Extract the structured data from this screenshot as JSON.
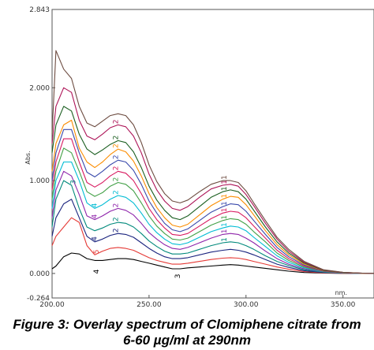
{
  "figure": {
    "caption_line1": "Figure 3: Overlay spectrum of Clomiphene citrate from",
    "caption_line2": "6-60 µg/ml at 290nm"
  },
  "chart_data": {
    "type": "line",
    "title": "",
    "xlabel": "nm.",
    "ylabel": "Abs.",
    "xlim": [
      200,
      366
    ],
    "ylim": [
      -0.264,
      2.843
    ],
    "x_ticks": [
      200,
      250,
      300,
      350
    ],
    "x_tick_labels": [
      "200.00",
      "250.00",
      "300.00",
      "350.00"
    ],
    "y_ticks": [
      -0.264,
      0.0,
      1.0,
      2.0,
      2.843
    ],
    "y_tick_labels": [
      "-0.264",
      "0.000",
      "1.000",
      "2.000",
      "2.843"
    ],
    "grid": false,
    "legend": "none",
    "peak_marker_labels": [
      "1",
      "2",
      "3",
      "4",
      "5"
    ],
    "series": [
      {
        "color": "#000000",
        "x": [
          200,
          202,
          206,
          210,
          214,
          218,
          222,
          226,
          230,
          234,
          238,
          242,
          246,
          250,
          254,
          258,
          262,
          266,
          270,
          276,
          282,
          288,
          292,
          296,
          300,
          304,
          310,
          316,
          322,
          330,
          340,
          350,
          360,
          366
        ],
        "values": [
          0.05,
          0.08,
          0.18,
          0.22,
          0.21,
          0.16,
          0.14,
          0.14,
          0.15,
          0.16,
          0.16,
          0.15,
          0.13,
          0.11,
          0.09,
          0.07,
          0.05,
          0.05,
          0.06,
          0.07,
          0.08,
          0.09,
          0.095,
          0.09,
          0.08,
          0.07,
          0.055,
          0.04,
          0.025,
          0.01,
          0.003,
          0.001,
          0.0,
          0.0
        ]
      },
      {
        "color": "#e53935",
        "x": [
          200,
          202,
          206,
          210,
          214,
          218,
          222,
          226,
          230,
          234,
          238,
          242,
          246,
          250,
          254,
          258,
          262,
          266,
          270,
          276,
          282,
          288,
          292,
          296,
          300,
          304,
          310,
          316,
          322,
          330,
          340,
          350,
          360,
          366
        ],
        "values": [
          0.3,
          0.4,
          0.5,
          0.6,
          0.55,
          0.3,
          0.2,
          0.24,
          0.27,
          0.28,
          0.27,
          0.25,
          0.21,
          0.17,
          0.14,
          0.12,
          0.1,
          0.1,
          0.11,
          0.13,
          0.15,
          0.165,
          0.17,
          0.165,
          0.15,
          0.13,
          0.1,
          0.07,
          0.045,
          0.02,
          0.006,
          0.002,
          0.0,
          0.0
        ]
      },
      {
        "color": "#1a237e",
        "x": [
          200,
          202,
          206,
          210,
          214,
          218,
          222,
          226,
          230,
          234,
          238,
          242,
          246,
          250,
          254,
          258,
          262,
          266,
          270,
          276,
          282,
          288,
          292,
          296,
          300,
          304,
          310,
          316,
          322,
          330,
          340,
          350,
          360,
          366
        ],
        "values": [
          0.4,
          0.6,
          0.75,
          0.8,
          0.6,
          0.4,
          0.34,
          0.37,
          0.41,
          0.43,
          0.42,
          0.39,
          0.33,
          0.27,
          0.22,
          0.18,
          0.16,
          0.16,
          0.17,
          0.2,
          0.23,
          0.25,
          0.26,
          0.25,
          0.23,
          0.2,
          0.15,
          0.1,
          0.065,
          0.03,
          0.01,
          0.003,
          0.0,
          0.0
        ]
      },
      {
        "color": "#00897b",
        "x": [
          200,
          202,
          206,
          210,
          214,
          218,
          222,
          226,
          230,
          234,
          238,
          242,
          246,
          250,
          254,
          258,
          262,
          266,
          270,
          276,
          282,
          288,
          292,
          296,
          300,
          304,
          310,
          316,
          322,
          330,
          340,
          350,
          360,
          366
        ],
        "values": [
          0.5,
          0.8,
          1.0,
          0.95,
          0.7,
          0.5,
          0.46,
          0.49,
          0.53,
          0.55,
          0.54,
          0.5,
          0.43,
          0.35,
          0.29,
          0.24,
          0.21,
          0.21,
          0.22,
          0.26,
          0.3,
          0.33,
          0.34,
          0.33,
          0.3,
          0.26,
          0.19,
          0.13,
          0.085,
          0.04,
          0.013,
          0.004,
          0.001,
          0.0
        ]
      },
      {
        "color": "#8e24aa",
        "x": [
          200,
          202,
          206,
          210,
          214,
          218,
          222,
          226,
          230,
          234,
          238,
          242,
          246,
          250,
          254,
          258,
          262,
          266,
          270,
          276,
          282,
          288,
          292,
          296,
          300,
          304,
          310,
          316,
          322,
          330,
          340,
          350,
          360,
          366
        ],
        "values": [
          0.6,
          0.9,
          1.1,
          1.05,
          0.85,
          0.62,
          0.58,
          0.62,
          0.67,
          0.7,
          0.68,
          0.63,
          0.54,
          0.44,
          0.37,
          0.31,
          0.27,
          0.26,
          0.28,
          0.33,
          0.38,
          0.42,
          0.43,
          0.42,
          0.38,
          0.33,
          0.24,
          0.16,
          0.1,
          0.05,
          0.016,
          0.005,
          0.001,
          0.0
        ]
      },
      {
        "color": "#00bcd4",
        "x": [
          200,
          202,
          206,
          210,
          214,
          218,
          222,
          226,
          230,
          234,
          238,
          242,
          246,
          250,
          254,
          258,
          262,
          266,
          270,
          276,
          282,
          288,
          292,
          296,
          300,
          304,
          310,
          316,
          322,
          330,
          340,
          350,
          360,
          366
        ],
        "values": [
          0.7,
          1.0,
          1.2,
          1.2,
          1.0,
          0.76,
          0.7,
          0.74,
          0.8,
          0.84,
          0.82,
          0.76,
          0.65,
          0.53,
          0.44,
          0.37,
          0.32,
          0.31,
          0.33,
          0.39,
          0.45,
          0.49,
          0.51,
          0.5,
          0.46,
          0.39,
          0.29,
          0.19,
          0.12,
          0.06,
          0.019,
          0.006,
          0.001,
          0.0
        ]
      },
      {
        "color": "#43a047",
        "x": [
          200,
          202,
          206,
          210,
          214,
          218,
          222,
          226,
          230,
          234,
          238,
          242,
          246,
          250,
          254,
          258,
          262,
          266,
          270,
          276,
          282,
          288,
          292,
          296,
          300,
          304,
          310,
          316,
          322,
          330,
          340,
          350,
          360,
          366
        ],
        "values": [
          0.8,
          1.1,
          1.35,
          1.3,
          1.1,
          0.88,
          0.83,
          0.87,
          0.94,
          0.98,
          0.96,
          0.89,
          0.76,
          0.62,
          0.51,
          0.43,
          0.37,
          0.36,
          0.38,
          0.45,
          0.52,
          0.57,
          0.59,
          0.58,
          0.53,
          0.45,
          0.34,
          0.22,
          0.14,
          0.07,
          0.022,
          0.007,
          0.002,
          0.0
        ]
      },
      {
        "color": "#d81b60",
        "x": [
          200,
          202,
          206,
          210,
          214,
          218,
          222,
          226,
          230,
          234,
          238,
          242,
          246,
          250,
          254,
          258,
          262,
          266,
          270,
          276,
          282,
          288,
          292,
          296,
          300,
          304,
          310,
          316,
          322,
          330,
          340,
          350,
          360,
          366
        ],
        "values": [
          0.9,
          1.2,
          1.45,
          1.45,
          1.2,
          0.98,
          0.93,
          0.98,
          1.05,
          1.1,
          1.08,
          1.0,
          0.86,
          0.7,
          0.58,
          0.49,
          0.42,
          0.41,
          0.43,
          0.51,
          0.59,
          0.65,
          0.67,
          0.66,
          0.6,
          0.51,
          0.38,
          0.25,
          0.16,
          0.08,
          0.025,
          0.008,
          0.002,
          0.0
        ]
      },
      {
        "color": "#3949ab",
        "x": [
          200,
          202,
          206,
          210,
          214,
          218,
          222,
          226,
          230,
          234,
          238,
          242,
          246,
          250,
          254,
          258,
          262,
          266,
          270,
          276,
          282,
          288,
          292,
          296,
          300,
          304,
          310,
          316,
          322,
          330,
          340,
          350,
          360,
          366
        ],
        "values": [
          1.0,
          1.3,
          1.55,
          1.55,
          1.3,
          1.09,
          1.04,
          1.1,
          1.17,
          1.22,
          1.2,
          1.11,
          0.96,
          0.78,
          0.65,
          0.54,
          0.47,
          0.45,
          0.48,
          0.57,
          0.66,
          0.72,
          0.75,
          0.74,
          0.67,
          0.57,
          0.42,
          0.28,
          0.18,
          0.09,
          0.028,
          0.009,
          0.002,
          0.0
        ]
      },
      {
        "color": "#fb8c00",
        "x": [
          200,
          202,
          206,
          210,
          214,
          218,
          222,
          226,
          230,
          234,
          238,
          242,
          246,
          250,
          254,
          258,
          262,
          266,
          270,
          276,
          282,
          288,
          292,
          296,
          300,
          304,
          310,
          316,
          322,
          330,
          340,
          350,
          360,
          366
        ],
        "values": [
          1.1,
          1.4,
          1.6,
          1.65,
          1.35,
          1.2,
          1.14,
          1.2,
          1.28,
          1.34,
          1.31,
          1.21,
          1.05,
          0.86,
          0.71,
          0.6,
          0.52,
          0.5,
          0.53,
          0.63,
          0.73,
          0.8,
          0.83,
          0.82,
          0.74,
          0.63,
          0.46,
          0.31,
          0.2,
          0.1,
          0.031,
          0.01,
          0.002,
          0.0
        ]
      },
      {
        "color": "#1b5e20",
        "x": [
          200,
          202,
          206,
          210,
          214,
          218,
          222,
          226,
          230,
          234,
          238,
          242,
          246,
          250,
          254,
          258,
          262,
          266,
          270,
          276,
          282,
          288,
          292,
          296,
          300,
          304,
          310,
          316,
          322,
          330,
          340,
          350,
          360,
          366
        ],
        "values": [
          1.3,
          1.6,
          1.8,
          1.75,
          1.5,
          1.34,
          1.28,
          1.33,
          1.39,
          1.43,
          1.41,
          1.31,
          1.14,
          0.94,
          0.79,
          0.68,
          0.6,
          0.58,
          0.62,
          0.72,
          0.82,
          0.88,
          0.9,
          0.88,
          0.8,
          0.68,
          0.5,
          0.34,
          0.22,
          0.11,
          0.034,
          0.011,
          0.003,
          0.0
        ]
      },
      {
        "color": "#ad1457",
        "x": [
          200,
          202,
          206,
          210,
          214,
          218,
          222,
          226,
          230,
          234,
          238,
          242,
          246,
          250,
          254,
          258,
          262,
          266,
          270,
          276,
          282,
          288,
          292,
          296,
          300,
          304,
          310,
          316,
          322,
          330,
          340,
          350,
          360,
          366
        ],
        "values": [
          1.4,
          1.8,
          2.0,
          1.95,
          1.65,
          1.48,
          1.44,
          1.5,
          1.57,
          1.6,
          1.58,
          1.48,
          1.3,
          1.07,
          0.9,
          0.78,
          0.7,
          0.68,
          0.72,
          0.82,
          0.91,
          0.95,
          0.96,
          0.94,
          0.85,
          0.73,
          0.54,
          0.37,
          0.24,
          0.12,
          0.037,
          0.012,
          0.003,
          0.0
        ]
      },
      {
        "color": "#6d4c41",
        "x": [
          200,
          202,
          206,
          210,
          214,
          218,
          222,
          226,
          230,
          234,
          238,
          242,
          246,
          250,
          254,
          258,
          262,
          266,
          270,
          276,
          282,
          288,
          292,
          296,
          300,
          304,
          310,
          316,
          322,
          330,
          340,
          350,
          360,
          366
        ],
        "values": [
          1.5,
          2.4,
          2.2,
          2.1,
          1.8,
          1.62,
          1.58,
          1.64,
          1.7,
          1.72,
          1.7,
          1.6,
          1.41,
          1.17,
          0.99,
          0.86,
          0.78,
          0.76,
          0.79,
          0.88,
          0.96,
          1.0,
          1.0,
          0.98,
          0.89,
          0.76,
          0.57,
          0.39,
          0.26,
          0.13,
          0.04,
          0.013,
          0.003,
          0.0
        ]
      }
    ]
  }
}
